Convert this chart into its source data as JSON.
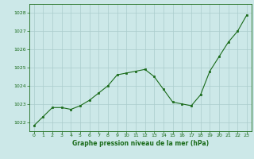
{
  "x": [
    0,
    1,
    2,
    3,
    4,
    5,
    6,
    7,
    8,
    9,
    10,
    11,
    12,
    13,
    14,
    15,
    16,
    17,
    18,
    19,
    20,
    21,
    22,
    23
  ],
  "y": [
    1021.8,
    1022.3,
    1022.8,
    1022.8,
    1022.7,
    1022.9,
    1023.2,
    1023.6,
    1024.0,
    1024.6,
    1024.7,
    1024.8,
    1024.9,
    1024.5,
    1023.8,
    1023.1,
    1023.0,
    1022.9,
    1023.5,
    1024.8,
    1025.6,
    1026.4,
    1027.0,
    1027.9
  ],
  "ylim": [
    1021.5,
    1028.5
  ],
  "yticks": [
    1022,
    1023,
    1024,
    1025,
    1026,
    1027,
    1028
  ],
  "xticks": [
    0,
    1,
    2,
    3,
    4,
    5,
    6,
    7,
    8,
    9,
    10,
    11,
    12,
    13,
    14,
    15,
    16,
    17,
    18,
    19,
    20,
    21,
    22,
    23
  ],
  "line_color": "#1a6b1a",
  "marker_color": "#1a6b1a",
  "bg_plot": "#cce8e8",
  "bg_fig": "#cce8e8",
  "grid_color": "#aacccc",
  "xlabel": "Graphe pression niveau de la mer (hPa)",
  "xlabel_color": "#1a6b1a",
  "tick_color": "#1a6b1a"
}
